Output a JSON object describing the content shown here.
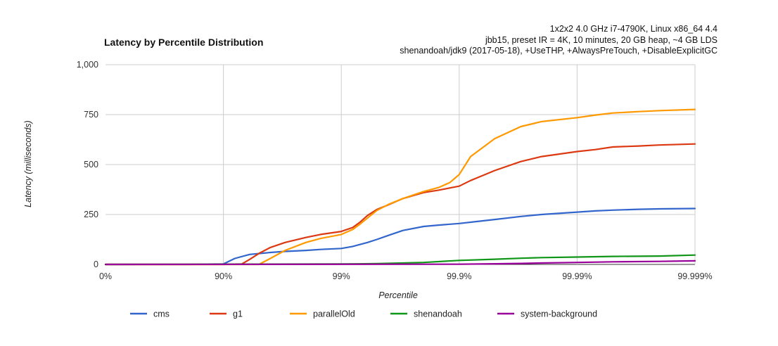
{
  "chart_data": {
    "type": "line",
    "title": "Latency by Percentile Distribution",
    "subtitle": [
      "1x2x2 4.0 GHz i7-4790K, Linux x86_64 4.4",
      "jbb15, preset IR = 4K, 10 minutes, 20 GB heap, ~4 GB LDS",
      "shenandoah/jdk9 (2017-05-18), +UseTHP, +AlwaysPreTouch, +DisableExplicitGC"
    ],
    "xlabel": "Percentile",
    "ylabel": "Latency (milliseconds)",
    "x_scale": "log-inverse",
    "x_tick_labels": [
      "0%",
      "90%",
      "99%",
      "99.9%",
      "99.99%",
      "99.999%"
    ],
    "x_ticks_percentile": [
      0,
      90,
      99,
      99.9,
      99.99,
      99.999
    ],
    "y_tick_labels": [
      "0",
      "250",
      "500",
      "750",
      "1,000"
    ],
    "ylim": [
      0,
      1000
    ],
    "grid": true,
    "legend_position": "bottom",
    "series": [
      {
        "name": "cms",
        "color": "#3366cc",
        "x": [
          0,
          80,
          90,
          92,
          94,
          96,
          97,
          98,
          98.5,
          99,
          99.2,
          99.4,
          99.5,
          99.6,
          99.7,
          99.8,
          99.85,
          99.9,
          99.93,
          99.95,
          99.97,
          99.98,
          99.99,
          99.993,
          99.995,
          99.997,
          99.998,
          99.999
        ],
        "y": [
          0,
          0,
          2,
          30,
          50,
          60,
          65,
          70,
          75,
          80,
          90,
          110,
          125,
          145,
          170,
          190,
          197,
          205,
          215,
          225,
          240,
          250,
          262,
          268,
          272,
          276,
          278,
          280
        ]
      },
      {
        "name": "g1",
        "color": "#dc3912",
        "x": [
          0,
          90,
          93,
          94,
          95,
          96,
          97,
          98,
          98.5,
          99,
          99.2,
          99.3,
          99.4,
          99.5,
          99.6,
          99.7,
          99.8,
          99.85,
          99.9,
          99.92,
          99.95,
          99.97,
          99.98,
          99.99,
          99.993,
          99.995,
          99.997,
          99.998,
          99.999
        ],
        "y": [
          0,
          0,
          2,
          25,
          55,
          85,
          110,
          135,
          150,
          165,
          185,
          210,
          245,
          275,
          298,
          330,
          360,
          372,
          392,
          420,
          470,
          515,
          540,
          565,
          575,
          588,
          593,
          598,
          603
        ]
      },
      {
        "name": "parallelOld",
        "color": "#ff9900",
        "x": [
          0,
          95,
          96,
          97,
          98,
          98.5,
          99,
          99.2,
          99.3,
          99.5,
          99.6,
          99.7,
          99.8,
          99.85,
          99.88,
          99.9,
          99.92,
          99.95,
          99.97,
          99.98,
          99.99,
          99.993,
          99.995,
          99.997,
          99.998,
          99.999
        ],
        "y": [
          0,
          0,
          30,
          70,
          110,
          130,
          150,
          175,
          200,
          270,
          300,
          330,
          365,
          385,
          410,
          450,
          540,
          630,
          690,
          715,
          735,
          748,
          758,
          765,
          770,
          776
        ]
      },
      {
        "name": "shenandoah",
        "color": "#109618",
        "x": [
          0,
          99,
          99.5,
          99.7,
          99.8,
          99.9,
          99.95,
          99.97,
          99.98,
          99.99,
          99.995,
          99.998,
          99.999
        ],
        "y": [
          0,
          2,
          4,
          7,
          10,
          20,
          26,
          31,
          34,
          37,
          40,
          42,
          47
        ]
      },
      {
        "name": "system-background",
        "color": "#990099",
        "x": [
          0,
          99.9,
          99.95,
          99.97,
          99.98,
          99.99,
          99.995,
          99.998,
          99.999
        ],
        "y": [
          0,
          1,
          3,
          5,
          7,
          10,
          13,
          15,
          18
        ]
      }
    ]
  }
}
